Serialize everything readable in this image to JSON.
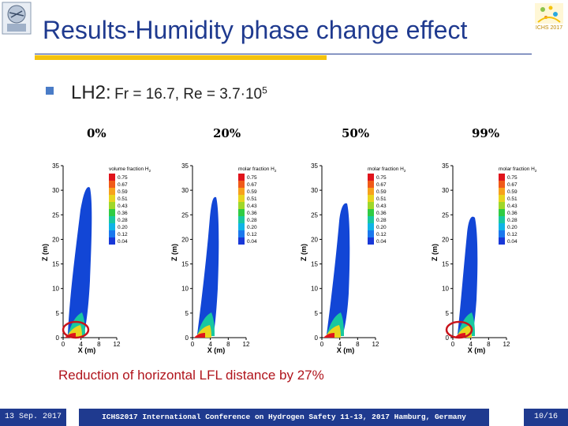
{
  "slide": {
    "title": "Results-Humidity phase change effect",
    "bullet": {
      "lead": "LH2:",
      "params": "Fr = 16.7, Re = 3.7·10",
      "exponent": "5"
    },
    "caption": "Reduction of horizontal LFL distance by 27%"
  },
  "logos": {
    "right_text": "ICHS 2017"
  },
  "panels": [
    {
      "label": "0%",
      "legend_title": "volume fraction H",
      "legend_sub": "2"
    },
    {
      "label": "20%",
      "legend_title": "molar fraction H",
      "legend_sub": "2"
    },
    {
      "label": "50%",
      "legend_title": "molar fraction H",
      "legend_sub": "2"
    },
    {
      "label": "99%",
      "legend_title": "molar fraction H",
      "legend_sub": "2"
    }
  ],
  "plot": {
    "y_axis_label": "Z (m)",
    "x_axis_label": "X (m)",
    "y_ticks": [
      "0",
      "5",
      "10",
      "15",
      "20",
      "25",
      "30",
      "35"
    ],
    "x_ticks": [
      "0",
      "4",
      "8",
      "12"
    ],
    "legend_values": [
      "0.75",
      "0.67",
      "0.59",
      "0.51",
      "0.43",
      "0.36",
      "0.28",
      "0.20",
      "0.12",
      "0.04"
    ]
  },
  "colors": {
    "title_blue": "#1f3a8f",
    "accent_yellow": "#f4c20d",
    "caption_red": "#b0141c",
    "plume_blue": "#1246d6",
    "legend": [
      "#e0141c",
      "#f05a18",
      "#f7a21c",
      "#e8d51f",
      "#9fd82a",
      "#30cc44",
      "#18c8a0",
      "#10b4e6",
      "#1a78ee",
      "#1838d8"
    ]
  },
  "footer": {
    "date": "13 Sep. 2017",
    "conference": "ICHS2017 International Conference on Hydrogen Safety 11-13, 2017 Hamburg, Germany",
    "page": "10/16"
  }
}
